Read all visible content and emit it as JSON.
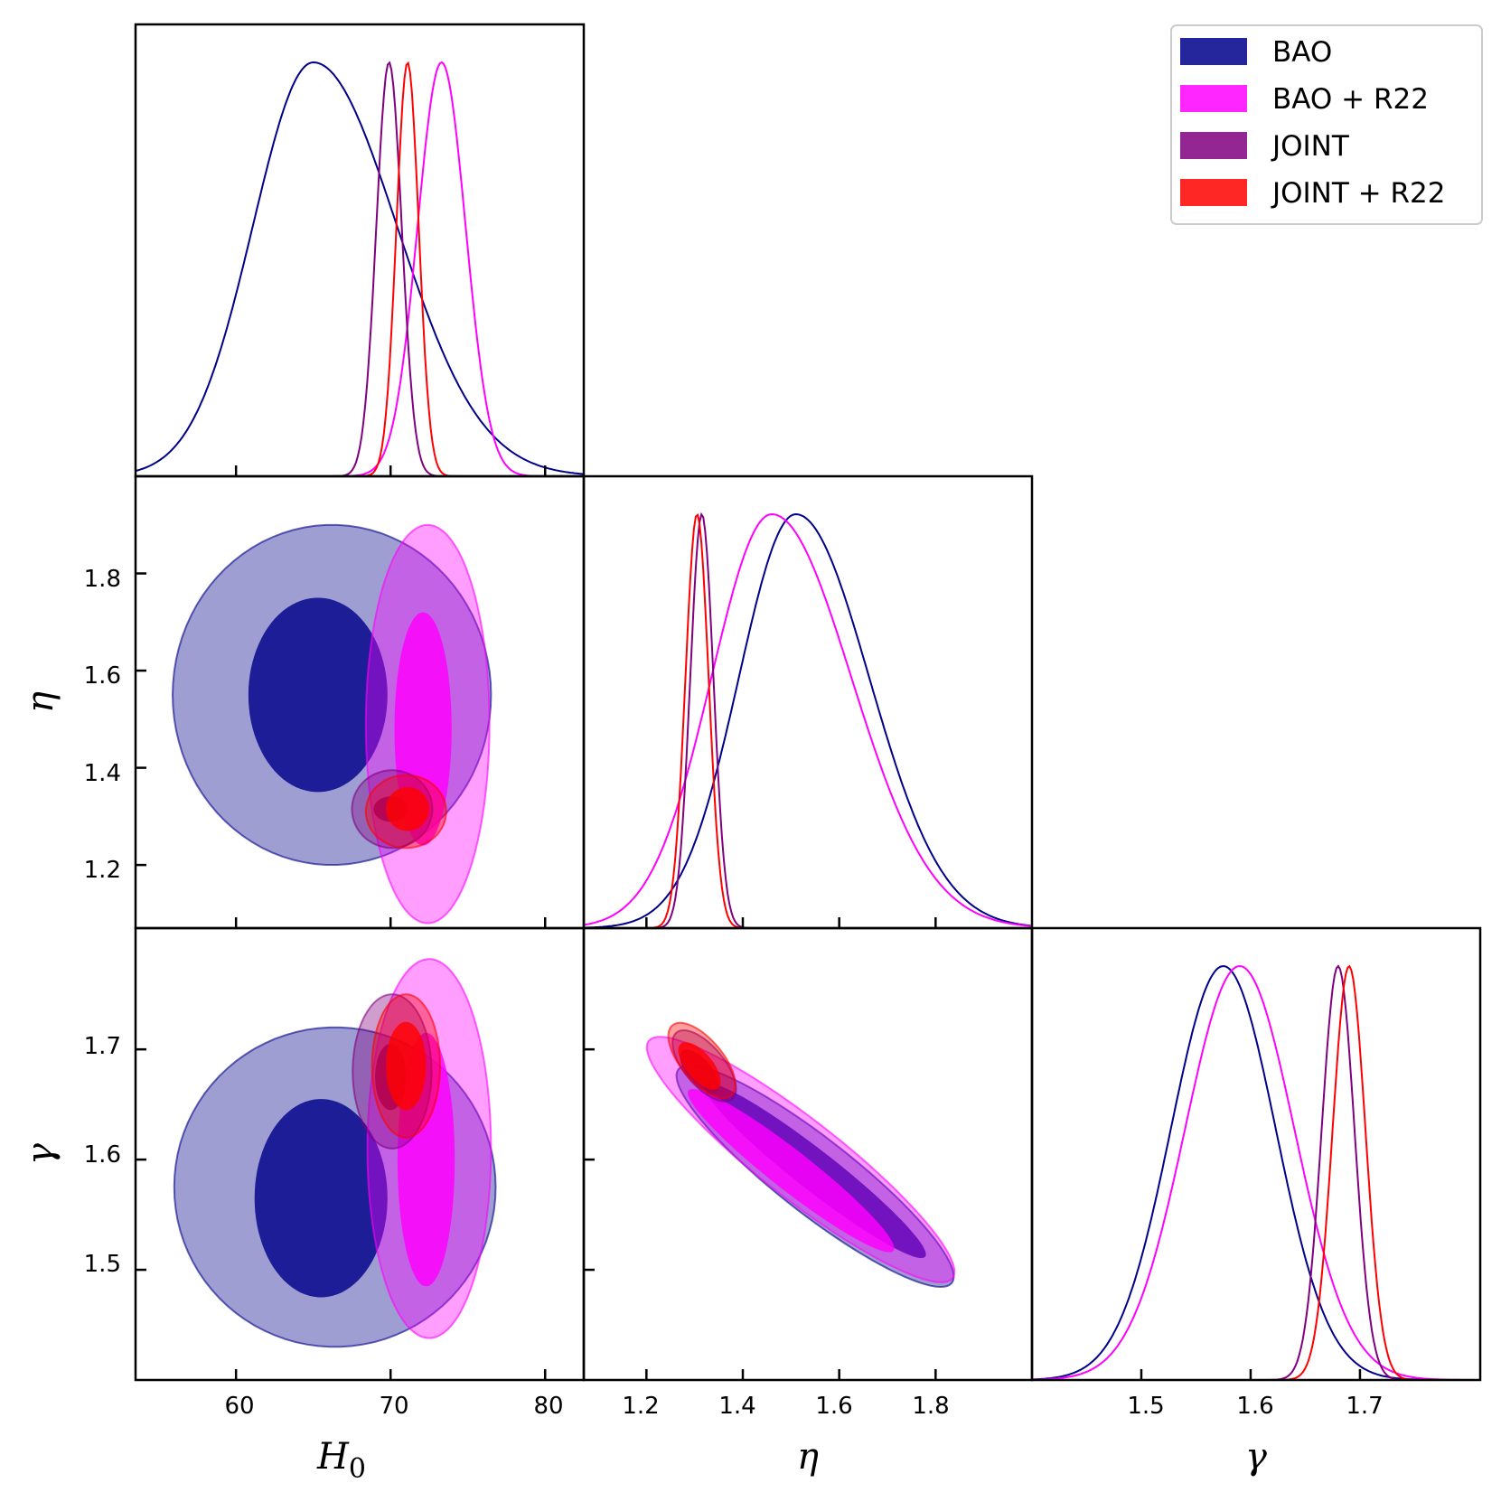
{
  "colors": {
    "BAO": "#00008b",
    "BAO + R22": "#ff00ff",
    "JOINT": "#800080",
    "JOINT + R22": "#ff0000"
  },
  "chart_data": {
    "type": "triangle-corner-plot",
    "parameters": [
      {
        "name": "H0",
        "label": "H",
        "subscript": "0",
        "range": [
          53.5,
          82.5
        ],
        "ticks": [
          60,
          70,
          80
        ],
        "tick_labels": [
          "60",
          "70",
          "80"
        ]
      },
      {
        "name": "eta",
        "label": "η",
        "range": [
          1.07,
          2.0
        ],
        "ticks": [
          1.2,
          1.4,
          1.6,
          1.8
        ],
        "tick_labels": [
          "1.2",
          "1.4",
          "1.6",
          "1.8"
        ]
      },
      {
        "name": "gamma",
        "label": "γ",
        "range": [
          1.4,
          1.81
        ],
        "ticks": [
          1.5,
          1.6,
          1.7
        ],
        "tick_labels": [
          "1.5",
          "1.6",
          "1.7"
        ]
      }
    ],
    "legend": {
      "position": "top-right",
      "entries": [
        "BAO",
        "BAO + R22",
        "JOINT",
        "JOINT + R22"
      ]
    },
    "series": [
      {
        "name": "BAO",
        "marginals": {
          "H0": {
            "mean": 65.0,
            "sigma": 3.9,
            "sigma_right": 5.4
          },
          "eta": {
            "mean": 1.51,
            "sigma": 0.118,
            "sigma_right": 0.152
          },
          "gamma": {
            "mean": 1.575,
            "sigma": 0.048
          }
        },
        "contours_68": {
          "H0-eta": {
            "center": [
              65.3,
              1.55
            ],
            "radii": [
              4.5,
              0.2
            ],
            "rot": 0
          },
          "H0-gamma": {
            "center": [
              65.5,
              1.565
            ],
            "radii": [
              4.3,
              0.09
            ],
            "rot": 0
          },
          "eta-gamma": {
            "center": [
              1.55,
              1.59
            ],
            "radii": [
              0.29,
              0.018
            ],
            "rot": -38
          }
        },
        "contours_95": {
          "H0-eta": {
            "center": [
              66.2,
              1.55
            ],
            "radii": [
              10.3,
              0.35
            ],
            "rot": 0
          },
          "H0-gamma": {
            "center": [
              66.4,
              1.575
            ],
            "radii": [
              10.4,
              0.145
            ],
            "rot": 0
          },
          "eta-gamma": {
            "center": [
              1.55,
              1.585
            ],
            "radii": [
              0.36,
              0.034
            ],
            "rot": -38
          }
        }
      },
      {
        "name": "BAO + R22",
        "marginals": {
          "H0": {
            "mean": 73.3,
            "sigma": 1.55
          },
          "eta": {
            "mean": 1.46,
            "sigma": 0.125,
            "sigma_right": 0.165
          },
          "gamma": {
            "mean": 1.59,
            "sigma": 0.05
          }
        },
        "contours_68": {
          "H0-eta": {
            "center": [
              72.1,
              1.48
            ],
            "radii": [
              1.85,
              0.24
            ],
            "rot": 0
          },
          "H0-gamma": {
            "center": [
              72.3,
              1.6
            ],
            "radii": [
              1.85,
              0.115
            ],
            "rot": 0
          },
          "eta-gamma": {
            "center": [
              1.5,
              1.59
            ],
            "radii": [
              0.27,
              0.018
            ],
            "rot": -38
          }
        },
        "contours_95": {
          "H0-eta": {
            "center": [
              72.4,
              1.49
            ],
            "radii": [
              4.0,
              0.41
            ],
            "rot": 0
          },
          "H0-gamma": {
            "center": [
              72.5,
              1.61
            ],
            "radii": [
              4.0,
              0.172
            ],
            "rot": 0
          },
          "eta-gamma": {
            "center": [
              1.52,
              1.6
            ],
            "radii": [
              0.4,
              0.036
            ],
            "rot": -38
          }
        }
      },
      {
        "name": "JOINT",
        "marginals": {
          "H0": {
            "mean": 69.9,
            "sigma": 0.82
          },
          "eta": {
            "mean": 1.315,
            "sigma": 0.024
          },
          "gamma": {
            "mean": 1.68,
            "sigma": 0.015
          }
        },
        "contours_68": {
          "H0-eta": {
            "center": [
              70.0,
              1.315
            ],
            "radii": [
              1.1,
              0.026
            ],
            "rot": 0
          },
          "H0-gamma": {
            "center": [
              70.0,
              1.675
            ],
            "radii": [
              1.0,
              0.03
            ],
            "rot": 0
          },
          "eta-gamma": {
            "center": [
              1.31,
              1.68
            ],
            "radii": [
              0.055,
              0.011
            ],
            "rot": -50
          }
        },
        "contours_95": {
          "H0-eta": {
            "center": [
              70.1,
              1.315
            ],
            "radii": [
              2.6,
              0.08
            ],
            "rot": 0
          },
          "H0-gamma": {
            "center": [
              70.1,
              1.68
            ],
            "radii": [
              2.55,
              0.07
            ],
            "rot": 0
          },
          "eta-gamma": {
            "center": [
              1.32,
              1.685
            ],
            "radii": [
              0.09,
              0.018
            ],
            "rot": -50
          }
        }
      },
      {
        "name": "JOINT + R22",
        "marginals": {
          "H0": {
            "mean": 71.1,
            "sigma": 0.72
          },
          "eta": {
            "mean": 1.305,
            "sigma": 0.024
          },
          "gamma": {
            "mean": 1.69,
            "sigma": 0.015
          }
        },
        "contours_68": {
          "H0-eta": {
            "center": [
              71.1,
              1.315
            ],
            "radii": [
              1.4,
              0.045
            ],
            "rot": 0
          },
          "H0-gamma": {
            "center": [
              71.0,
              1.685
            ],
            "radii": [
              1.3,
              0.04
            ],
            "rot": 0
          },
          "eta-gamma": {
            "center": [
              1.31,
              1.685
            ],
            "radii": [
              0.06,
              0.012
            ],
            "rot": -50
          }
        },
        "contours_95": {
          "H0-eta": {
            "center": [
              71.0,
              1.31
            ],
            "radii": [
              2.6,
              0.075
            ],
            "rot": 0
          },
          "H0-gamma": {
            "center": [
              71.0,
              1.685
            ],
            "radii": [
              2.2,
              0.065
            ],
            "rot": 0
          },
          "eta-gamma": {
            "center": [
              1.315,
              1.69
            ],
            "radii": [
              0.095,
              0.019
            ],
            "rot": -50
          }
        }
      }
    ]
  }
}
